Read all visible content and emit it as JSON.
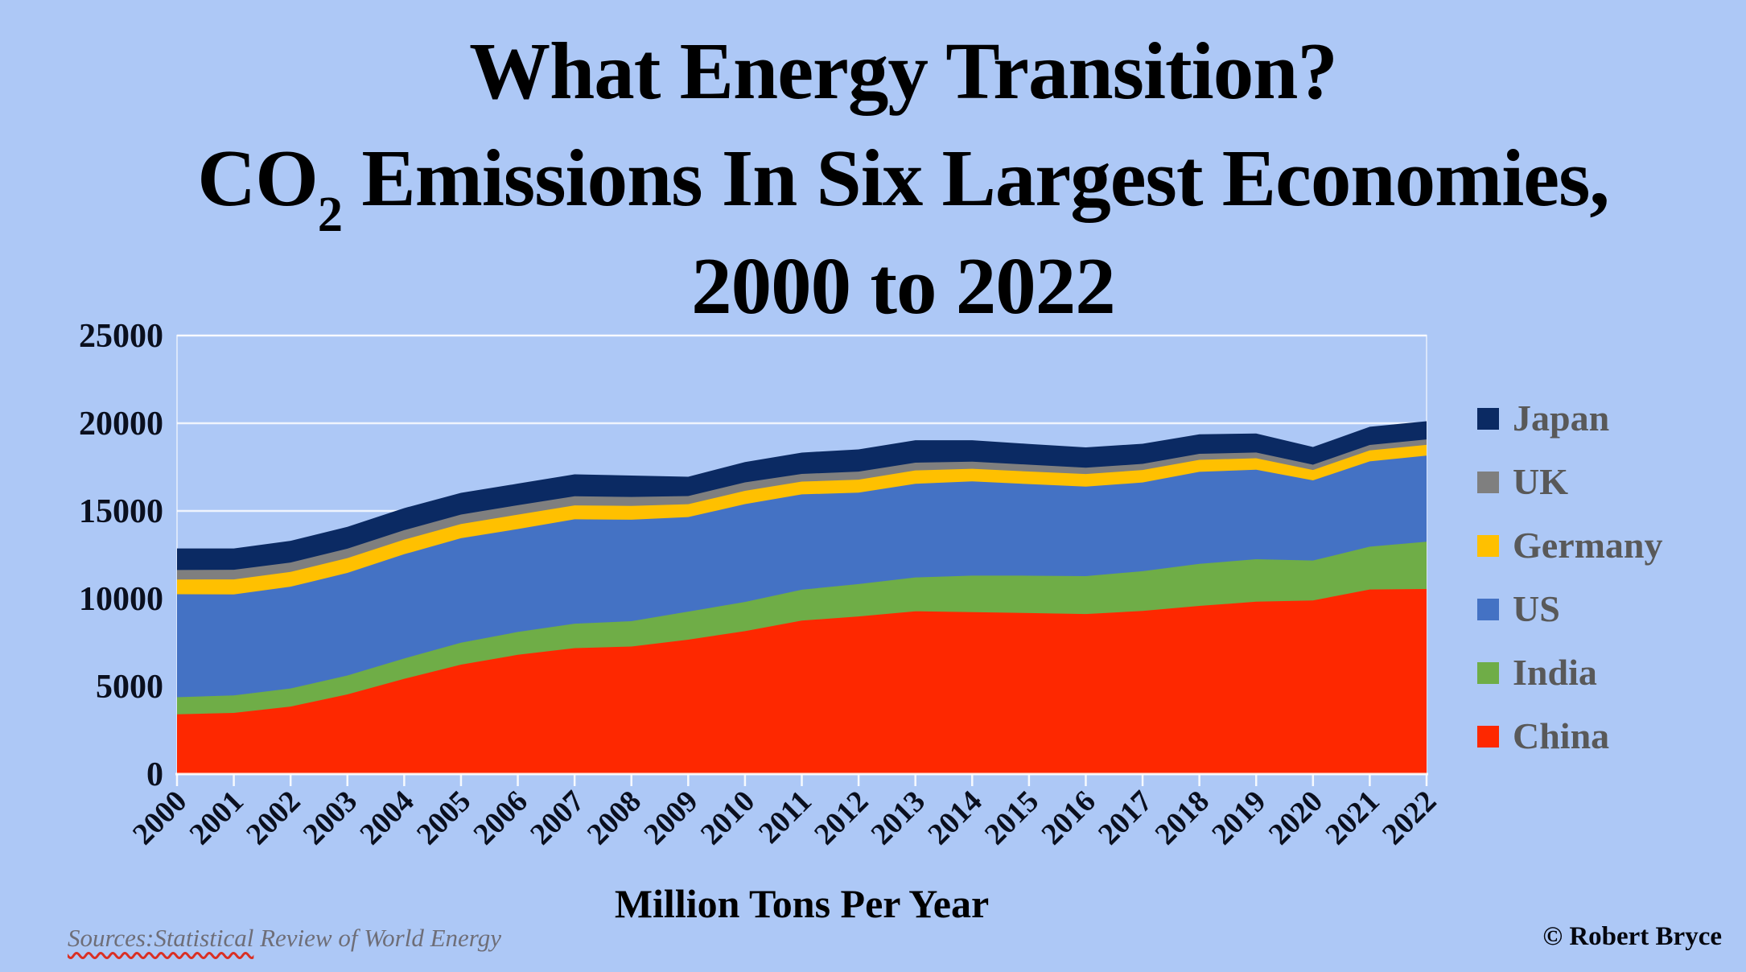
{
  "page": {
    "background": "#adc8f6"
  },
  "title": {
    "line1": "What Energy Transition?",
    "line2_prefix": "CO",
    "line2_subscript": "2",
    "line2_rest": " Emissions In Six Largest Economies,",
    "line3": "2000 to 2022"
  },
  "y_axis": {
    "tick_labels": [
      "0",
      "5000",
      "10000",
      "15000",
      "20000",
      "25000"
    ],
    "max": 25000,
    "text_color": "#0a0f1e"
  },
  "x_axis": {
    "title": "Million Tons Per Year",
    "text_color": "#0a0f1e"
  },
  "legend": {
    "text_color": "#595959",
    "items_top_to_bottom": [
      "Japan",
      "UK",
      "Germany",
      "US",
      "India",
      "China"
    ]
  },
  "footer": {
    "sources_underlined": "Sources:Statistical",
    "sources_rest": " Review of World Energy",
    "squiggle_color": "#d93025",
    "copyright": "© Robert Bryce"
  },
  "chart_data": {
    "type": "area",
    "stacked": true,
    "title": "What Energy Transition? CO2 Emissions In Six Largest Economies, 2000 to 2022",
    "xlabel": "Million Tons Per Year",
    "ylabel": "",
    "ylim": [
      0,
      25000
    ],
    "grid": true,
    "legend_position": "right",
    "x": [
      2000,
      2001,
      2002,
      2003,
      2004,
      2005,
      2006,
      2007,
      2008,
      2009,
      2010,
      2011,
      2012,
      2013,
      2014,
      2015,
      2016,
      2017,
      2018,
      2019,
      2020,
      2021,
      2022
    ],
    "series": [
      {
        "name": "China",
        "color": "#fe2800",
        "values": [
          3405,
          3487,
          3850,
          4540,
          5430,
          6240,
          6800,
          7180,
          7270,
          7660,
          8150,
          8750,
          8985,
          9280,
          9230,
          9180,
          9120,
          9300,
          9585,
          9826,
          9899,
          10523,
          10550
        ]
      },
      {
        "name": "India",
        "color": "#6fad47",
        "values": [
          978,
          995,
          1031,
          1078,
          1161,
          1250,
          1301,
          1390,
          1447,
          1602,
          1660,
          1761,
          1848,
          1929,
          2083,
          2130,
          2165,
          2265,
          2398,
          2422,
          2274,
          2440,
          2693
        ]
      },
      {
        "name": "US",
        "color": "#4472c4",
        "values": [
          5868,
          5756,
          5800,
          5850,
          5942,
          5957,
          5868,
          5956,
          5783,
          5387,
          5580,
          5433,
          5212,
          5341,
          5371,
          5220,
          5100,
          5057,
          5246,
          5103,
          4569,
          4866,
          4908
        ]
      },
      {
        "name": "Germany",
        "color": "#ffc000",
        "values": [
          840,
          858,
          843,
          841,
          830,
          810,
          821,
          787,
          788,
          734,
          758,
          729,
          738,
          759,
          716,
          718,
          718,
          710,
          683,
          652,
          593,
          622,
          619
        ]
      },
      {
        "name": "UK",
        "color": "#7f7f7f",
        "values": [
          543,
          550,
          535,
          541,
          540,
          539,
          536,
          523,
          510,
          465,
          479,
          438,
          457,
          446,
          408,
          390,
          360,
          350,
          343,
          331,
          300,
          313,
          307
        ]
      },
      {
        "name": "Japan",
        "color": "#0b2a63",
        "values": [
          1228,
          1216,
          1240,
          1244,
          1259,
          1238,
          1231,
          1254,
          1219,
          1101,
          1162,
          1216,
          1272,
          1276,
          1225,
          1180,
          1160,
          1150,
          1117,
          1079,
          1011,
          1033,
          1035
        ]
      }
    ]
  }
}
